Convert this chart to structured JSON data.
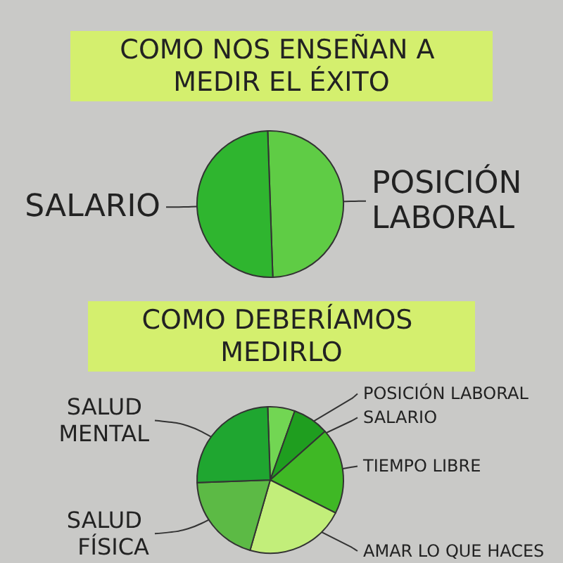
{
  "chart_data": [
    {
      "type": "pie",
      "title": "COMO NOS ENSEÑAN A MEDIR EL ÉXITO",
      "categories": [
        "POSICIÓN LABORAL",
        "SALARIO"
      ],
      "values": [
        50,
        50
      ],
      "colors": [
        "#5fcc45",
        "#2fb52f"
      ]
    },
    {
      "type": "pie",
      "title": "COMO DEBERÍAMOS MEDIRLO",
      "categories": [
        "POSICIÓN LABORAL",
        "SALARIO",
        "TIEMPO LIBRE",
        "AMAR LO QUE HACES",
        "SALUD FÍSICA",
        "SALUD MENTAL"
      ],
      "values": [
        6,
        8,
        19,
        22,
        20,
        25
      ],
      "colors": [
        "#72d653",
        "#1f9e1f",
        "#3fb825",
        "#c2ee7a",
        "#5cba45",
        "#1fa630"
      ]
    }
  ]
}
